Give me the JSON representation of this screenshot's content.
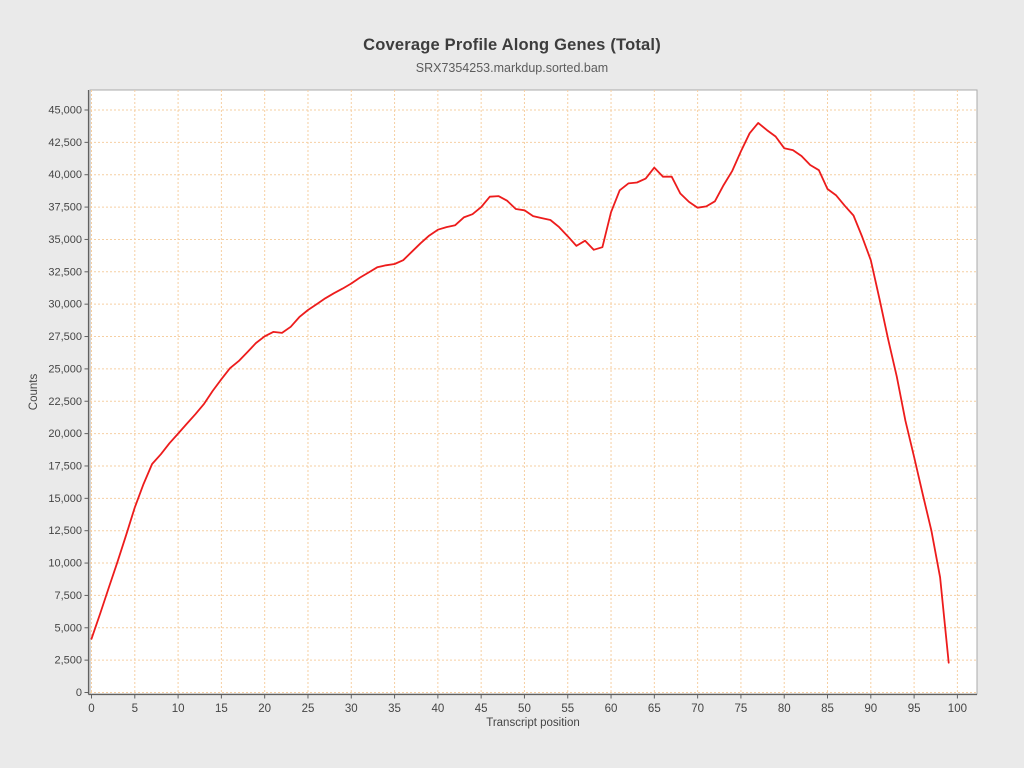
{
  "header": {
    "title": "Coverage Profile Along Genes (Total)",
    "subtitle": "SRX7354253.markdup.sorted.bam"
  },
  "chart_data": {
    "type": "line",
    "title": "Coverage Profile Along Genes (Total)",
    "subtitle": "SRX7354253.markdup.sorted.bam",
    "xlabel": "Transcript position",
    "ylabel": "Counts",
    "xlim": [
      -0.5,
      102.3
    ],
    "ylim": [
      0,
      46500
    ],
    "x_ticks": [
      0,
      5,
      10,
      15,
      20,
      25,
      30,
      35,
      40,
      45,
      50,
      55,
      60,
      65,
      70,
      75,
      80,
      85,
      90,
      95,
      100
    ],
    "y_ticks": [
      0,
      2500,
      5000,
      7500,
      10000,
      12500,
      15000,
      17500,
      20000,
      22500,
      25000,
      27500,
      30000,
      32500,
      35000,
      37500,
      40000,
      42500,
      45000
    ],
    "grid": true,
    "legend": "none",
    "series": [
      {
        "name": "SRX7354253.markdup.sorted.bam",
        "color": "#ed1c1c",
        "x": [
          0,
          1,
          2,
          3,
          4,
          5,
          6,
          7,
          8,
          9,
          10,
          11,
          12,
          13,
          14,
          15,
          16,
          17,
          18,
          19,
          20,
          21,
          22,
          23,
          24,
          25,
          26,
          27,
          28,
          29,
          30,
          31,
          32,
          33,
          34,
          35,
          36,
          37,
          38,
          39,
          40,
          41,
          42,
          43,
          44,
          45,
          46,
          47,
          48,
          49,
          50,
          51,
          52,
          53,
          54,
          55,
          56,
          57,
          58,
          59,
          60,
          61,
          62,
          63,
          64,
          65,
          66,
          67,
          68,
          69,
          70,
          71,
          72,
          73,
          74,
          75,
          76,
          77,
          78,
          79,
          80,
          81,
          82,
          83,
          84,
          85,
          86,
          87,
          88,
          89,
          90,
          91,
          92,
          93,
          94,
          95,
          96,
          97,
          98,
          99
        ],
        "values": [
          4150,
          6100,
          8100,
          10100,
          12150,
          14300,
          16100,
          17650,
          18400,
          19250,
          20000,
          20750,
          21500,
          22300,
          23300,
          24200,
          25050,
          25600,
          26300,
          27000,
          27520,
          27860,
          27780,
          28250,
          29000,
          29550,
          30000,
          30450,
          30850,
          31200,
          31600,
          32050,
          32450,
          32850,
          33000,
          33100,
          33400,
          34050,
          34700,
          35300,
          35750,
          35950,
          36100,
          36700,
          36950,
          37500,
          38300,
          38350,
          37990,
          37350,
          37250,
          36800,
          36650,
          36500,
          35950,
          35250,
          34500,
          34900,
          34200,
          34400,
          37100,
          38800,
          39330,
          39400,
          39700,
          40550,
          39850,
          39850,
          38550,
          37900,
          37450,
          37550,
          37950,
          39200,
          40300,
          41800,
          43200,
          44000,
          43450,
          42950,
          42050,
          41900,
          41450,
          40750,
          40350,
          38900,
          38400,
          37600,
          36850,
          35200,
          33400,
          30400,
          27300,
          24400,
          21000,
          18200,
          15300,
          12500,
          8900,
          2300
        ]
      }
    ]
  },
  "colors": {
    "background": "#eaeaea",
    "plot_background": "#ffffff",
    "grid": "#f6cfa2",
    "axis": "#616161",
    "tick_text": "#454545",
    "plot_border": "#ababab",
    "title": "#3d3d3d",
    "subtitle": "#5c5c5c"
  }
}
